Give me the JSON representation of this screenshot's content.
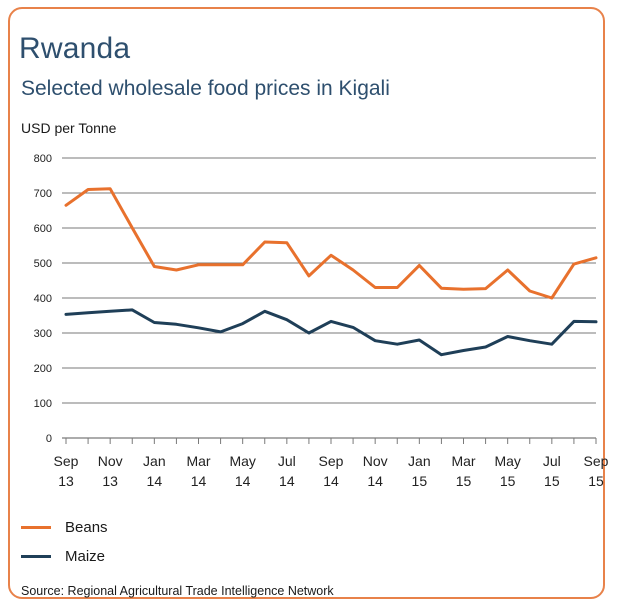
{
  "title": "Rwanda",
  "subtitle": "Selected wholesale food prices in Kigali",
  "source": "Source: Regional Agricultural Trade Intelligence Network",
  "colors": {
    "beans": "#e8712d",
    "maize": "#1f3f58",
    "grid": "#7a7a7a",
    "border": "#e8824a"
  },
  "chart_data": {
    "type": "line",
    "title": "Rwanda",
    "subtitle": "Selected wholesale food prices in Kigali",
    "ylabel": "USD per Tonne",
    "xlabel": "",
    "ylim": [
      0,
      800
    ],
    "yticks": [
      0,
      100,
      200,
      300,
      400,
      500,
      600,
      700,
      800
    ],
    "grid": true,
    "legend_position": "bottom-left",
    "x_ticks": [
      [
        "Sep",
        "13"
      ],
      [
        "Nov",
        "13"
      ],
      [
        "Jan",
        "14"
      ],
      [
        "Mar",
        "14"
      ],
      [
        "May",
        "14"
      ],
      [
        "Jul",
        "14"
      ],
      [
        "Sep",
        "14"
      ],
      [
        "Nov",
        "14"
      ],
      [
        "Jan",
        "15"
      ],
      [
        "Mar",
        "15"
      ],
      [
        "May",
        "15"
      ],
      [
        "Jul",
        "15"
      ],
      [
        "Sep",
        "15"
      ]
    ],
    "x": [
      "Sep 13",
      "Oct 13",
      "Nov 13",
      "Dec 13",
      "Jan 14",
      "Feb 14",
      "Mar 14",
      "Apr 14",
      "May 14",
      "Jun 14",
      "Jul 14",
      "Aug 14",
      "Sep 14",
      "Oct 14",
      "Nov 14",
      "Dec 14",
      "Jan 15",
      "Feb 15",
      "Mar 15",
      "Apr 15",
      "May 15",
      "Jun 15",
      "Jul 15",
      "Aug 15",
      "Sep 15"
    ],
    "series": [
      {
        "name": "Beans",
        "values": [
          665,
          710,
          712,
          600,
          490,
          480,
          495,
          495,
          495,
          560,
          558,
          463,
          522,
          480,
          430,
          430,
          493,
          428,
          425,
          427,
          480,
          420,
          400,
          497,
          515
        ]
      },
      {
        "name": "Maize",
        "values": [
          353,
          358,
          362,
          366,
          330,
          325,
          315,
          303,
          327,
          362,
          338,
          300,
          333,
          316,
          278,
          268,
          280,
          238,
          250,
          260,
          290,
          278,
          268,
          333,
          332
        ]
      }
    ]
  }
}
